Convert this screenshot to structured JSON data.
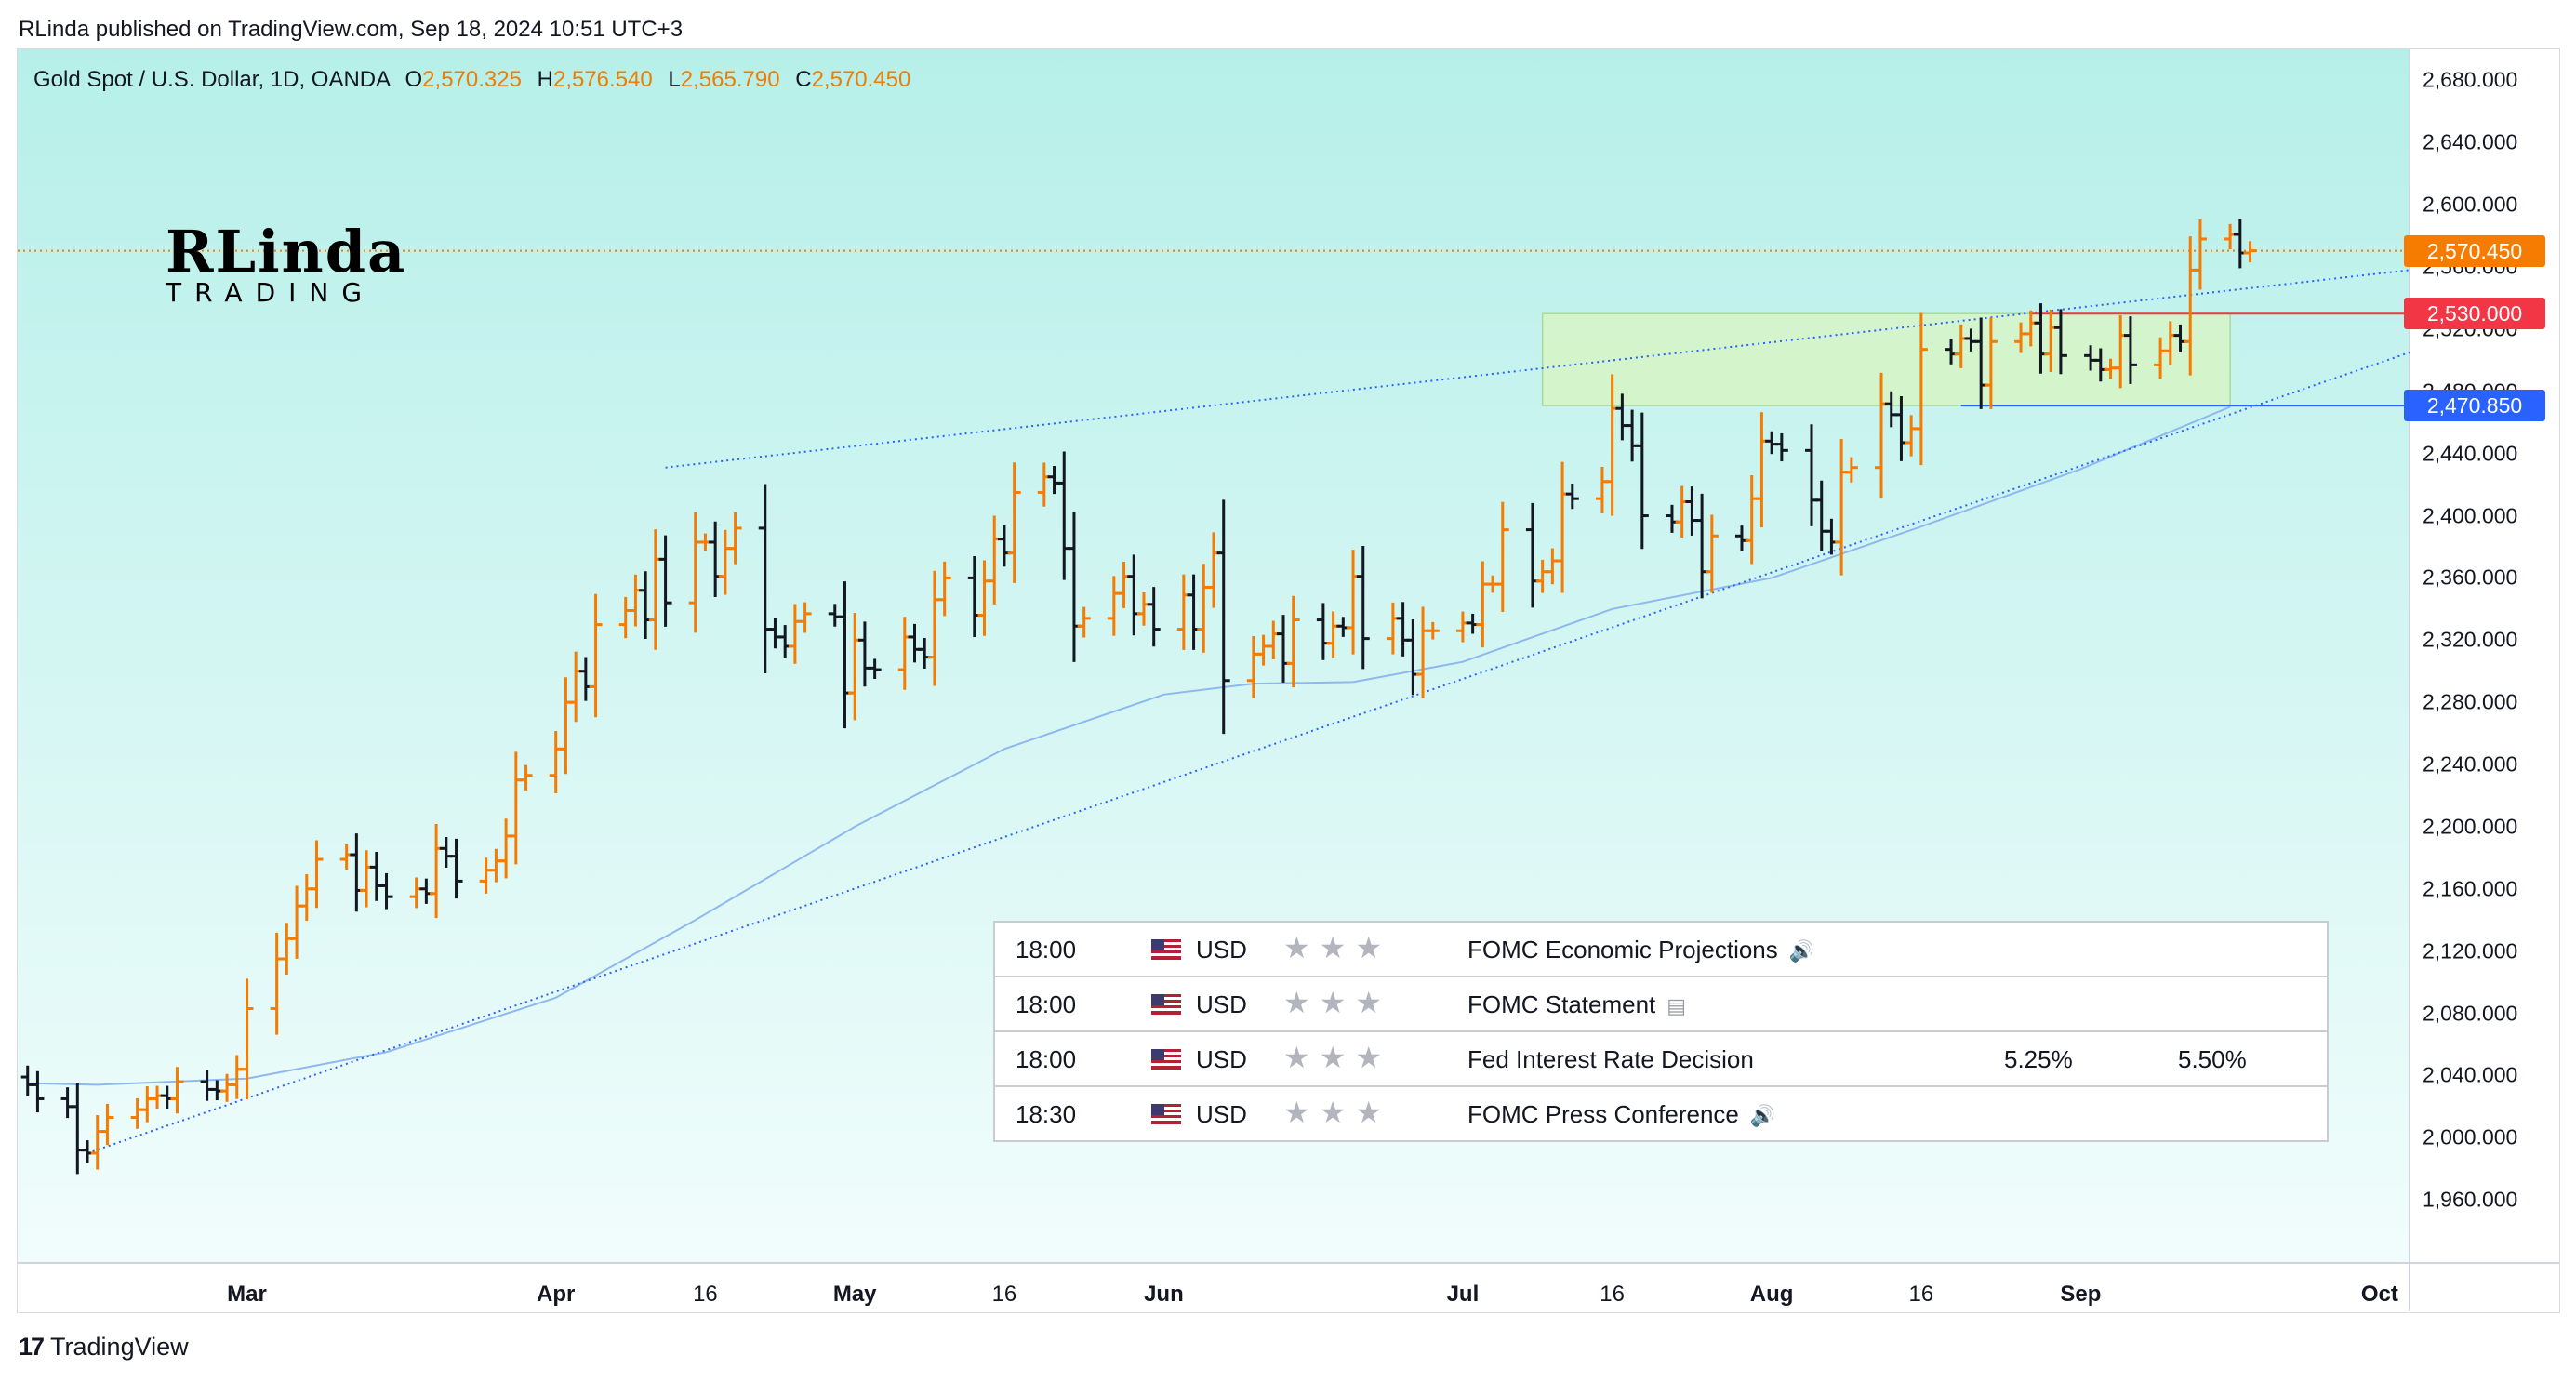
{
  "header": {
    "published": "RLinda published on TradingView.com, Sep 18, 2024 10:51 UTC+3"
  },
  "legend": {
    "symbol": "Gold Spot / U.S. Dollar, 1D, OANDA",
    "o_label": "O",
    "o_value": "2,570.325",
    "h_label": "H",
    "h_value": "2,576.540",
    "l_label": "L",
    "l_value": "2,565.790",
    "c_label": "C",
    "c_value": "2,570.450"
  },
  "logo": {
    "name": "RLinda",
    "sub": "TRADING"
  },
  "price_tags": [
    {
      "label": "2,570.450",
      "value": 2570.45,
      "color": "#f57c00"
    },
    {
      "label": "2,530.000",
      "value": 2530.0,
      "color": "#f23645"
    },
    {
      "label": "2,470.850",
      "value": 2470.85,
      "color": "#2962ff"
    }
  ],
  "events": [
    {
      "time": "18:00",
      "currency": "USD",
      "stars": "★★★",
      "name": "FOMC Economic Projections",
      "icon": "speaker-icon",
      "icon_glyph": "🔊",
      "prev": "",
      "fcst": ""
    },
    {
      "time": "18:00",
      "currency": "USD",
      "stars": "★★★",
      "name": "FOMC Statement",
      "icon": "document-icon",
      "icon_glyph": "▤",
      "prev": "",
      "fcst": ""
    },
    {
      "time": "18:00",
      "currency": "USD",
      "stars": "★★★",
      "name": "Fed Interest Rate Decision",
      "icon": "",
      "icon_glyph": "",
      "prev": "5.25%",
      "fcst": "5.50%"
    },
    {
      "time": "18:30",
      "currency": "USD",
      "stars": "★★★",
      "name": "FOMC Press Conference",
      "icon": "speaker-icon",
      "icon_glyph": "🔊",
      "prev": "",
      "fcst": ""
    }
  ],
  "footer": {
    "brand": "TradingView",
    "logo_glyph": "17"
  },
  "colors": {
    "up": "#f57c00",
    "down": "#131722",
    "ma": "#8fb8ee",
    "trend": "#2962ff",
    "zone": "#d6f5c6",
    "bg_top": "#b6efe9",
    "bg_bottom": "#f1fdfc"
  },
  "chart_data": {
    "type": "ohlc",
    "title": "Gold Spot / U.S. Dollar, 1D, OANDA",
    "y_ticks": [
      "2,680.000",
      "2,640.000",
      "2,600.000",
      "2,560.000",
      "2,520.000",
      "2,480.000",
      "2,440.000",
      "2,400.000",
      "2,360.000",
      "2,320.000",
      "2,280.000",
      "2,240.000",
      "2,200.000",
      "2,160.000",
      "2,120.000",
      "2,080.000",
      "2,040.000",
      "2,000.000",
      "1,960.000"
    ],
    "y_tick_values": [
      2680,
      2640,
      2600,
      2560,
      2520,
      2480,
      2440,
      2400,
      2360,
      2320,
      2280,
      2240,
      2200,
      2160,
      2120,
      2080,
      2040,
      2000,
      1960
    ],
    "ylim": [
      1920,
      2700
    ],
    "x_ticks": [
      {
        "label": "Mar",
        "date": "2024-03-01",
        "bold": true
      },
      {
        "label": "Apr",
        "date": "2024-04-01",
        "bold": true
      },
      {
        "label": "16",
        "date": "2024-04-16",
        "bold": false
      },
      {
        "label": "May",
        "date": "2024-05-01",
        "bold": true
      },
      {
        "label": "16",
        "date": "2024-05-16",
        "bold": false
      },
      {
        "label": "Jun",
        "date": "2024-06-01",
        "bold": true
      },
      {
        "label": "Jul",
        "date": "2024-07-01",
        "bold": true
      },
      {
        "label": "16",
        "date": "2024-07-16",
        "bold": false
      },
      {
        "label": "Aug",
        "date": "2024-08-01",
        "bold": true
      },
      {
        "label": "16",
        "date": "2024-08-16",
        "bold": false
      },
      {
        "label": "Sep",
        "date": "2024-09-01",
        "bold": true
      },
      {
        "label": "Oct",
        "date": "2024-10-01",
        "bold": true
      }
    ],
    "xlim": [
      "2024-02-07",
      "2024-10-04"
    ],
    "closes": [
      [
        "2024-02-08",
        2034
      ],
      [
        "2024-02-09",
        2025
      ],
      [
        "2024-02-12",
        2020
      ],
      [
        "2024-02-13",
        1992
      ],
      [
        "2024-02-14",
        1990
      ],
      [
        "2024-02-15",
        2004
      ],
      [
        "2024-02-16",
        2013
      ],
      [
        "2024-02-19",
        2018
      ],
      [
        "2024-02-20",
        2025
      ],
      [
        "2024-02-21",
        2027
      ],
      [
        "2024-02-22",
        2025
      ],
      [
        "2024-02-23",
        2036
      ],
      [
        "2024-02-26",
        2031
      ],
      [
        "2024-02-27",
        2030
      ],
      [
        "2024-02-28",
        2034
      ],
      [
        "2024-02-29",
        2044
      ],
      [
        "2024-03-01",
        2083
      ],
      [
        "2024-03-04",
        2115
      ],
      [
        "2024-03-05",
        2128
      ],
      [
        "2024-03-06",
        2149
      ],
      [
        "2024-03-07",
        2160
      ],
      [
        "2024-03-08",
        2179
      ],
      [
        "2024-03-11",
        2182
      ],
      [
        "2024-03-12",
        2159
      ],
      [
        "2024-03-13",
        2174
      ],
      [
        "2024-03-14",
        2162
      ],
      [
        "2024-03-15",
        2155
      ],
      [
        "2024-03-18",
        2160
      ],
      [
        "2024-03-19",
        2157
      ],
      [
        "2024-03-20",
        2186
      ],
      [
        "2024-03-21",
        2181
      ],
      [
        "2024-03-22",
        2165
      ],
      [
        "2024-03-25",
        2172
      ],
      [
        "2024-03-26",
        2178
      ],
      [
        "2024-03-27",
        2194
      ],
      [
        "2024-03-28",
        2230
      ],
      [
        "2024-03-29",
        2233
      ],
      [
        "2024-04-01",
        2250
      ],
      [
        "2024-04-02",
        2280
      ],
      [
        "2024-04-03",
        2300
      ],
      [
        "2024-04-04",
        2290
      ],
      [
        "2024-04-05",
        2330
      ],
      [
        "2024-04-08",
        2339
      ],
      [
        "2024-04-09",
        2352
      ],
      [
        "2024-04-10",
        2333
      ],
      [
        "2024-04-11",
        2372
      ],
      [
        "2024-04-12",
        2344
      ],
      [
        "2024-04-15",
        2383
      ],
      [
        "2024-04-16",
        2383
      ],
      [
        "2024-04-17",
        2361
      ],
      [
        "2024-04-18",
        2379
      ],
      [
        "2024-04-19",
        2392
      ],
      [
        "2024-04-22",
        2327
      ],
      [
        "2024-04-23",
        2322
      ],
      [
        "2024-04-24",
        2316
      ],
      [
        "2024-04-25",
        2332
      ],
      [
        "2024-04-26",
        2337
      ],
      [
        "2024-04-29",
        2335
      ],
      [
        "2024-04-30",
        2286
      ],
      [
        "2024-05-01",
        2320
      ],
      [
        "2024-05-02",
        2302
      ],
      [
        "2024-05-03",
        2301
      ],
      [
        "2024-05-06",
        2322
      ],
      [
        "2024-05-07",
        2314
      ],
      [
        "2024-05-08",
        2309
      ],
      [
        "2024-05-09",
        2346
      ],
      [
        "2024-05-10",
        2360
      ],
      [
        "2024-05-13",
        2336
      ],
      [
        "2024-05-14",
        2358
      ],
      [
        "2024-05-15",
        2385
      ],
      [
        "2024-05-16",
        2376
      ],
      [
        "2024-05-17",
        2415
      ],
      [
        "2024-05-20",
        2425
      ],
      [
        "2024-05-21",
        2421
      ],
      [
        "2024-05-22",
        2379
      ],
      [
        "2024-05-23",
        2329
      ],
      [
        "2024-05-24",
        2334
      ],
      [
        "2024-05-27",
        2350
      ],
      [
        "2024-05-28",
        2361
      ],
      [
        "2024-05-29",
        2337
      ],
      [
        "2024-05-30",
        2343
      ],
      [
        "2024-05-31",
        2327
      ],
      [
        "2024-06-03",
        2349
      ],
      [
        "2024-06-04",
        2327
      ],
      [
        "2024-06-05",
        2354
      ],
      [
        "2024-06-06",
        2376
      ],
      [
        "2024-06-07",
        2294
      ],
      [
        "2024-06-10",
        2311
      ],
      [
        "2024-06-11",
        2316
      ],
      [
        "2024-06-12",
        2324
      ],
      [
        "2024-06-13",
        2305
      ],
      [
        "2024-06-14",
        2333
      ],
      [
        "2024-06-17",
        2318
      ],
      [
        "2024-06-18",
        2329
      ],
      [
        "2024-06-19",
        2328
      ],
      [
        "2024-06-20",
        2361
      ],
      [
        "2024-06-21",
        2321
      ],
      [
        "2024-06-24",
        2334
      ],
      [
        "2024-06-25",
        2320
      ],
      [
        "2024-06-26",
        2298
      ],
      [
        "2024-06-27",
        2326
      ],
      [
        "2024-06-28",
        2326
      ],
      [
        "2024-07-01",
        2331
      ],
      [
        "2024-07-02",
        2330
      ],
      [
        "2024-07-03",
        2356
      ],
      [
        "2024-07-04",
        2356
      ],
      [
        "2024-07-05",
        2391
      ],
      [
        "2024-07-08",
        2358
      ],
      [
        "2024-07-09",
        2364
      ],
      [
        "2024-07-10",
        2371
      ],
      [
        "2024-07-11",
        2414
      ],
      [
        "2024-07-12",
        2411
      ],
      [
        "2024-07-15",
        2422
      ],
      [
        "2024-07-16",
        2469
      ],
      [
        "2024-07-17",
        2458
      ],
      [
        "2024-07-18",
        2445
      ],
      [
        "2024-07-19",
        2400
      ],
      [
        "2024-07-22",
        2396
      ],
      [
        "2024-07-23",
        2409
      ],
      [
        "2024-07-24",
        2397
      ],
      [
        "2024-07-25",
        2364
      ],
      [
        "2024-07-26",
        2387
      ],
      [
        "2024-07-29",
        2384
      ],
      [
        "2024-07-30",
        2411
      ],
      [
        "2024-07-31",
        2448
      ],
      [
        "2024-08-01",
        2446
      ],
      [
        "2024-08-02",
        2442
      ],
      [
        "2024-08-05",
        2410
      ],
      [
        "2024-08-06",
        2390
      ],
      [
        "2024-08-07",
        2383
      ],
      [
        "2024-08-08",
        2428
      ],
      [
        "2024-08-09",
        2431
      ],
      [
        "2024-08-12",
        2472
      ],
      [
        "2024-08-13",
        2465
      ],
      [
        "2024-08-14",
        2447
      ],
      [
        "2024-08-15",
        2456
      ],
      [
        "2024-08-16",
        2507
      ],
      [
        "2024-08-19",
        2504
      ],
      [
        "2024-08-20",
        2514
      ],
      [
        "2024-08-21",
        2512
      ],
      [
        "2024-08-22",
        2484
      ],
      [
        "2024-08-23",
        2512
      ],
      [
        "2024-08-26",
        2517
      ],
      [
        "2024-08-27",
        2524
      ],
      [
        "2024-08-28",
        2504
      ],
      [
        "2024-08-29",
        2521
      ],
      [
        "2024-08-30",
        2503
      ],
      [
        "2024-09-02",
        2500
      ],
      [
        "2024-09-03",
        2494
      ],
      [
        "2024-09-04",
        2495
      ],
      [
        "2024-09-05",
        2516
      ],
      [
        "2024-09-06",
        2497
      ],
      [
        "2024-09-09",
        2506
      ],
      [
        "2024-09-10",
        2516
      ],
      [
        "2024-09-11",
        2512
      ],
      [
        "2024-09-12",
        2558
      ],
      [
        "2024-09-13",
        2578
      ],
      [
        "2024-09-16",
        2581
      ],
      [
        "2024-09-17",
        2569
      ],
      [
        "2024-09-18",
        2570.45
      ]
    ],
    "moving_average": [
      [
        "2024-02-08",
        2035
      ],
      [
        "2024-02-15",
        2034
      ],
      [
        "2024-03-01",
        2038
      ],
      [
        "2024-03-15",
        2055
      ],
      [
        "2024-04-01",
        2090
      ],
      [
        "2024-04-15",
        2140
      ],
      [
        "2024-05-01",
        2200
      ],
      [
        "2024-05-16",
        2250
      ],
      [
        "2024-06-01",
        2285
      ],
      [
        "2024-06-10",
        2292
      ],
      [
        "2024-06-20",
        2293
      ],
      [
        "2024-07-01",
        2306
      ],
      [
        "2024-07-16",
        2340
      ],
      [
        "2024-08-01",
        2360
      ],
      [
        "2024-08-16",
        2393
      ],
      [
        "2024-09-01",
        2430
      ],
      [
        "2024-09-16",
        2470
      ]
    ],
    "trendlines": [
      {
        "from": [
          "2024-02-14",
          1990
        ],
        "to": [
          "2024-10-04",
          2505
        ]
      },
      {
        "from": [
          "2024-04-12",
          2431
        ],
        "to": [
          "2024-10-04",
          2558
        ]
      }
    ],
    "zone": {
      "from": "2024-07-09",
      "to": "2024-09-16",
      "top": 2530.0,
      "bottom": 2470.85
    },
    "levels": [
      {
        "value": 2570.45,
        "style": "dotted",
        "color": "#f57c00"
      },
      {
        "value": 2530.0,
        "from": "2024-08-27",
        "color": "#f23645"
      },
      {
        "value": 2470.85,
        "from": "2024-08-20",
        "color": "#2962ff"
      }
    ]
  }
}
